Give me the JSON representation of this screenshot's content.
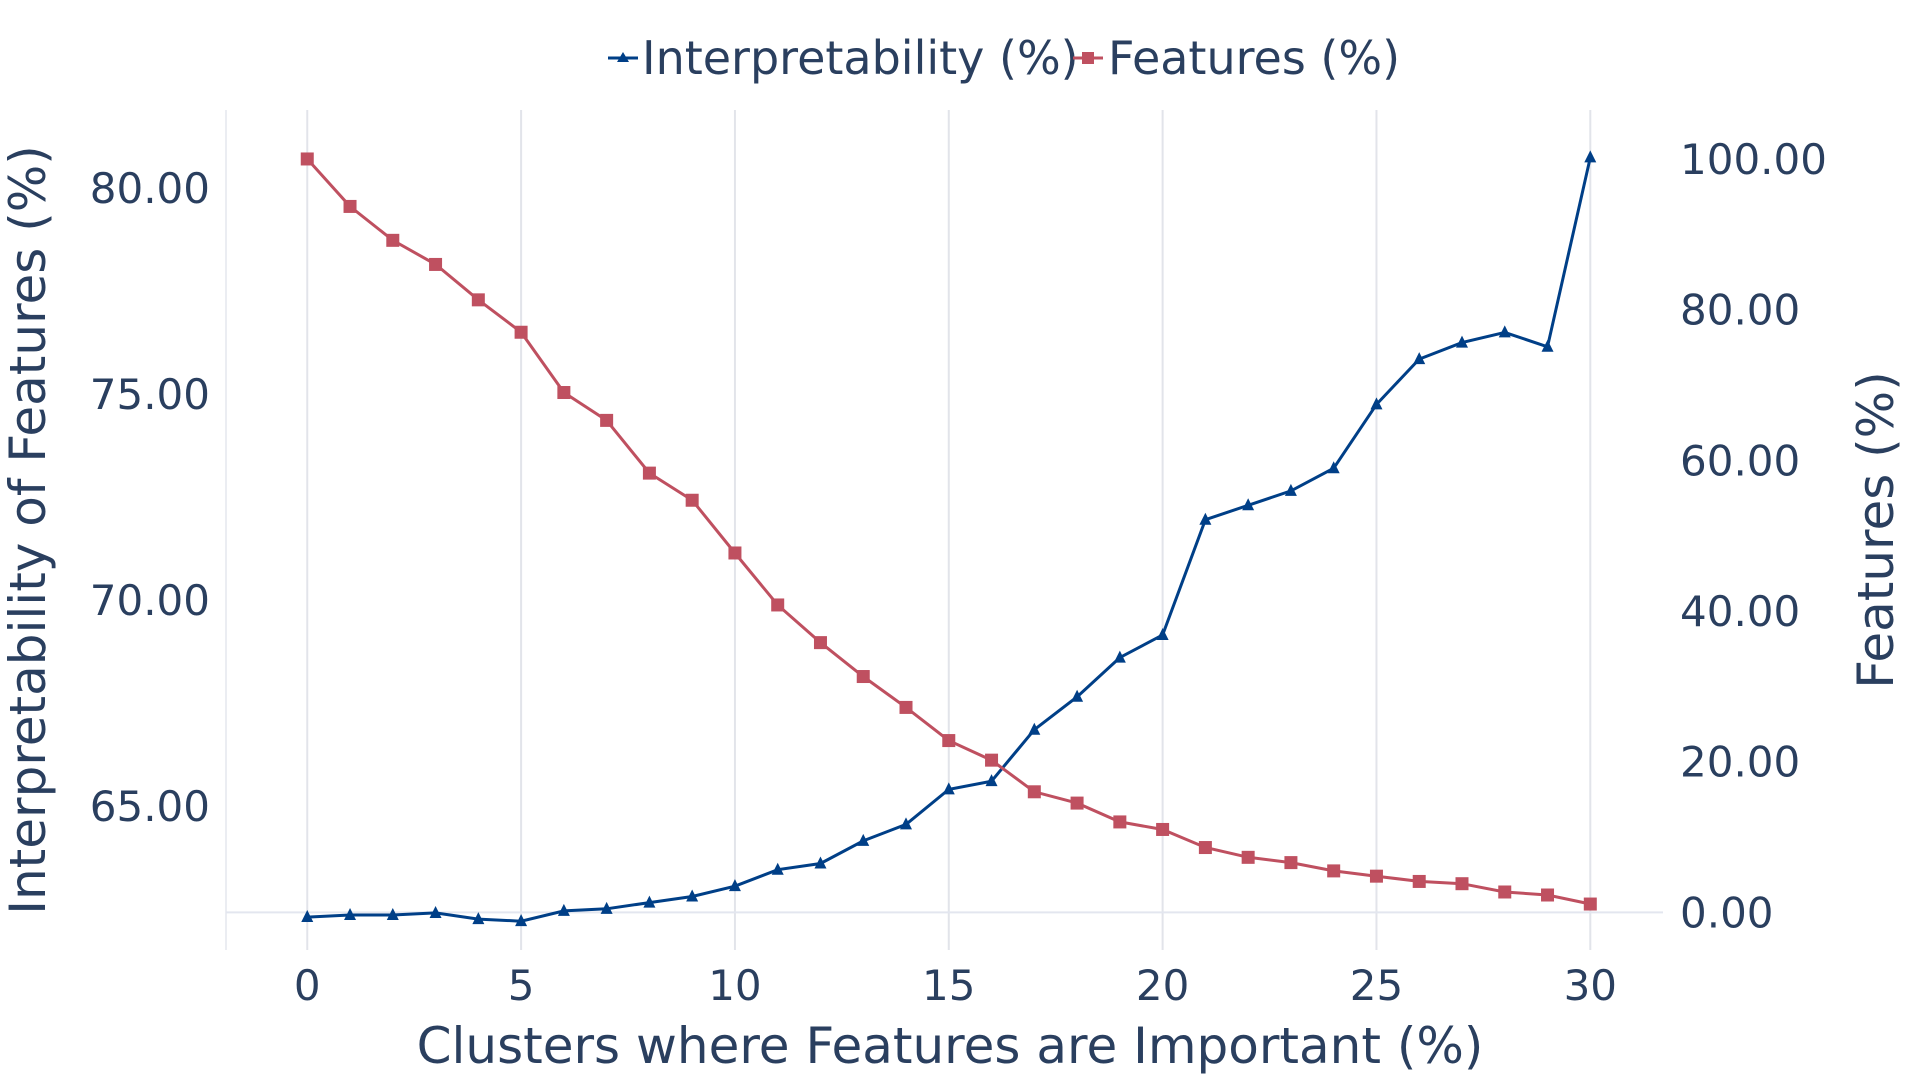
{
  "chart_data": {
    "type": "line",
    "title": "",
    "xlabel": "Clusters where Features are Important (%)",
    "ylabel": "Interpretability of Features (%)",
    "y2label": "Features (%)",
    "legend_position": "top-center",
    "grid": {
      "x": true,
      "y": false
    },
    "xlim": [
      -1.9,
      31.7
    ],
    "ylim": [
      61.5,
      81.9
    ],
    "y2lim": [
      -5.0,
      106.5
    ],
    "x_ticks": [
      0,
      5,
      10,
      15,
      20,
      25,
      30
    ],
    "x_tick_labels": [
      "0",
      "5",
      "10",
      "15",
      "20",
      "25",
      "30"
    ],
    "y_ticks": [
      65,
      70,
      75,
      80
    ],
    "y_tick_labels": [
      "65.00",
      "70.00",
      "75.00",
      "80.00"
    ],
    "y2_ticks": [
      0,
      20,
      40,
      60,
      80,
      100
    ],
    "y2_tick_labels": [
      "0.00",
      "20.00",
      "40.00",
      "60.00",
      "80.00",
      "100.00"
    ],
    "x": [
      0,
      1,
      2,
      3,
      4,
      5,
      6,
      7,
      8,
      9,
      10,
      11,
      12,
      13,
      14,
      15,
      16,
      17,
      18,
      19,
      20,
      21,
      22,
      23,
      24,
      25,
      26,
      27,
      28,
      29,
      30
    ],
    "series": [
      {
        "name": "Interpretability (%)",
        "axis": "left",
        "color": "#003f87",
        "marker": "triangle",
        "values": [
          62.3,
          62.35,
          62.35,
          62.4,
          62.25,
          62.2,
          62.45,
          62.5,
          62.65,
          62.8,
          63.05,
          63.45,
          63.6,
          64.15,
          64.55,
          65.4,
          65.6,
          66.85,
          67.65,
          68.6,
          69.15,
          71.95,
          72.3,
          72.65,
          73.2,
          74.75,
          75.85,
          76.25,
          76.5,
          76.15,
          80.75
        ]
      },
      {
        "name": "Features (%)",
        "axis": "right",
        "color": "#bf5060",
        "marker": "square",
        "values": [
          100.0,
          93.7,
          89.2,
          86.0,
          81.3,
          77.0,
          69.0,
          65.3,
          58.3,
          54.7,
          47.7,
          40.8,
          35.8,
          31.3,
          27.2,
          22.8,
          20.2,
          16.0,
          14.5,
          12.0,
          11.0,
          8.6,
          7.3,
          6.6,
          5.5,
          4.8,
          4.1,
          3.8,
          2.7,
          2.3,
          1.1
        ]
      }
    ]
  }
}
